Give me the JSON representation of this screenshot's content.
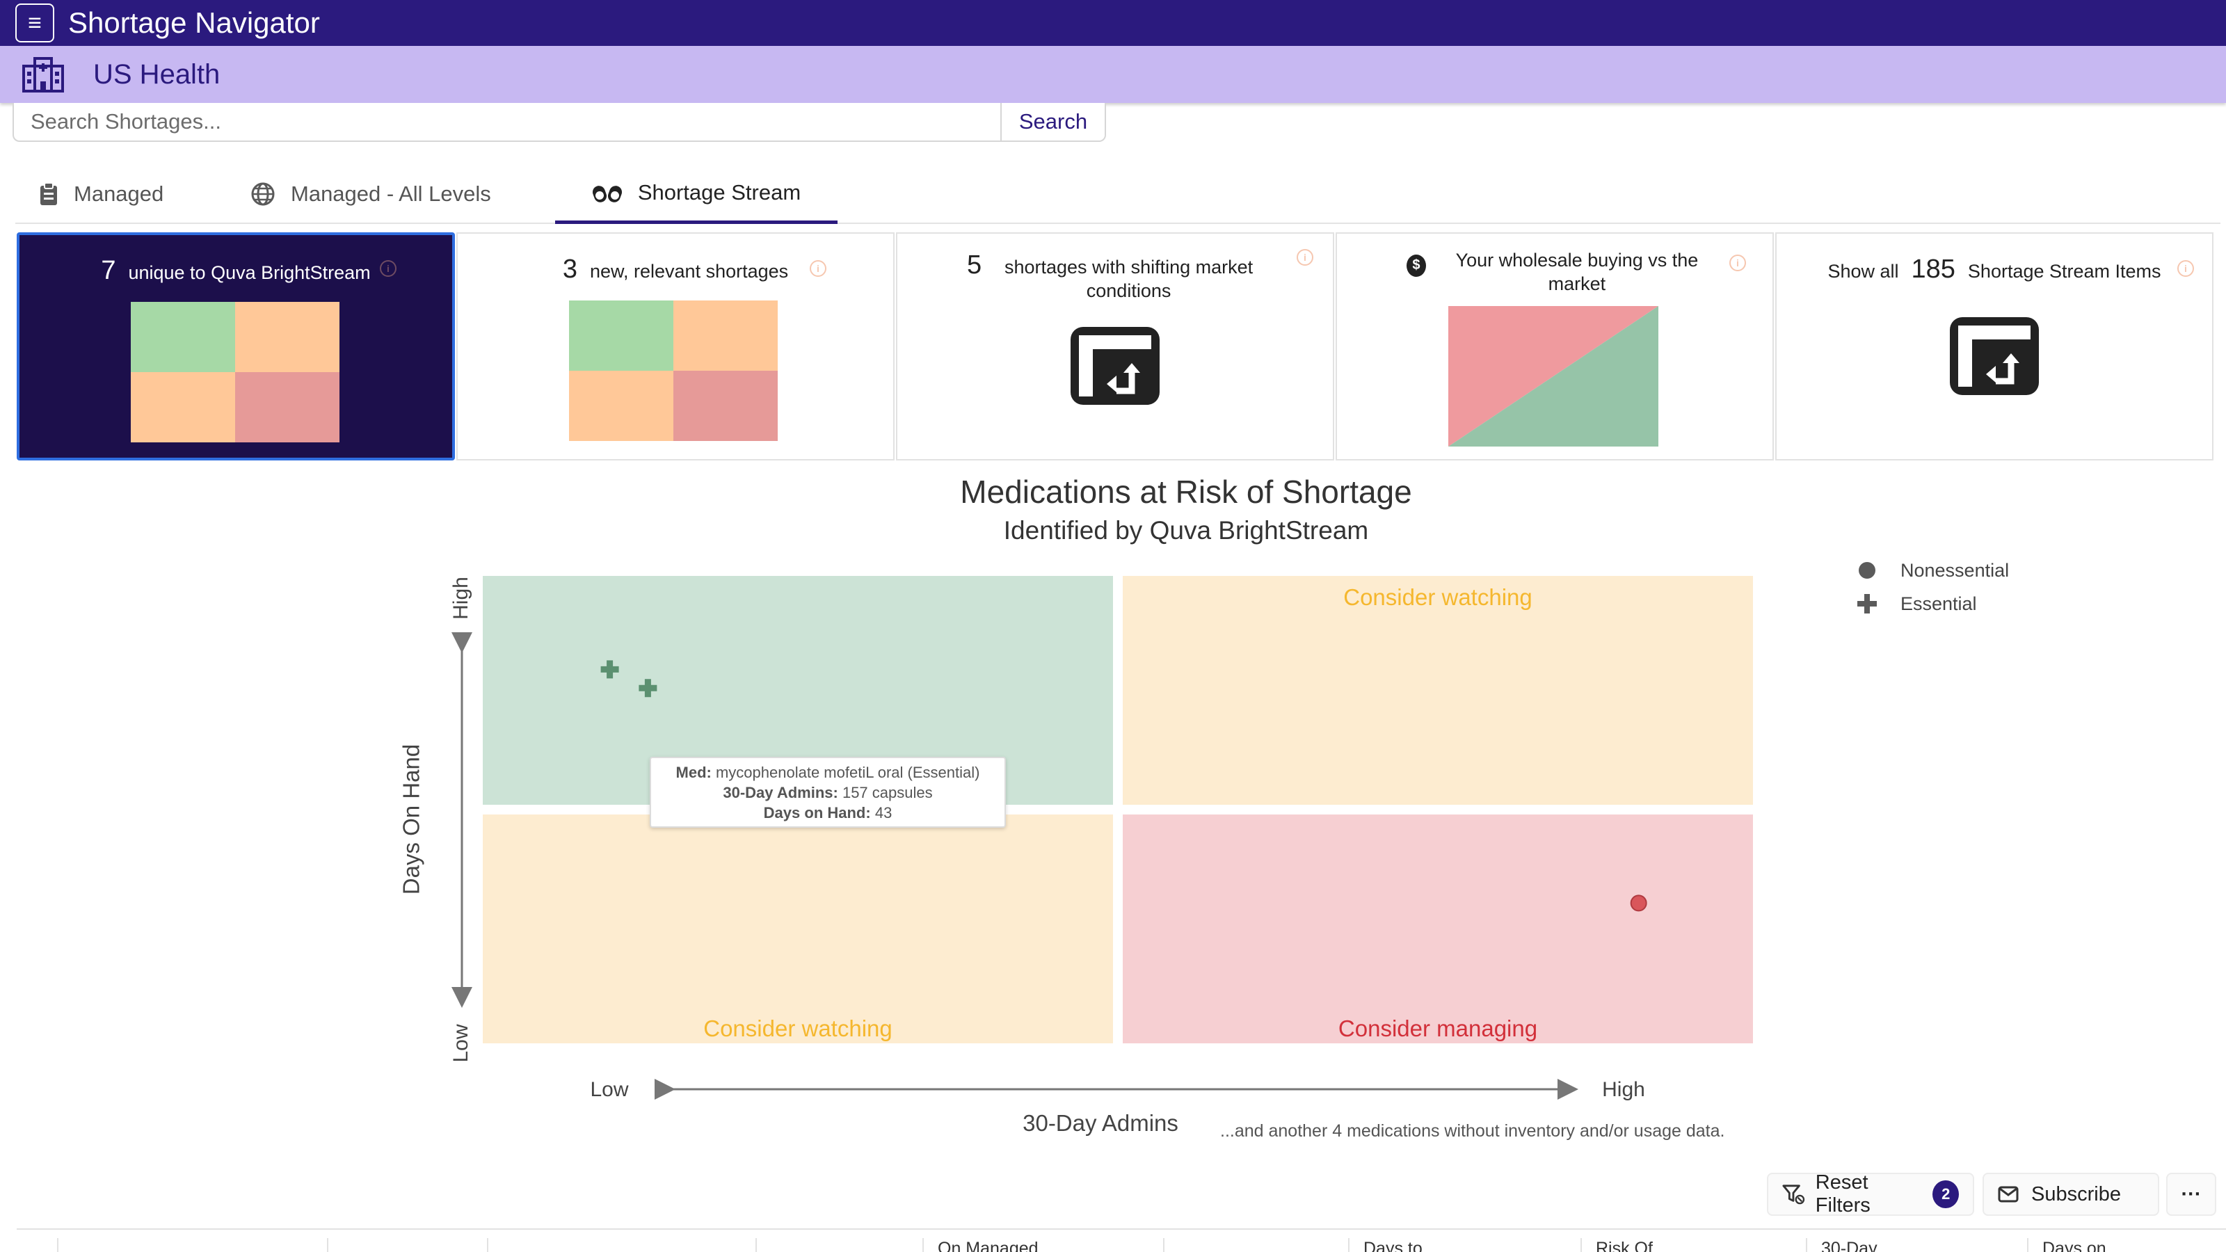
{
  "app": {
    "title": "Shortage Navigator",
    "menu_icon": "hamburger-icon"
  },
  "org": {
    "name": "US Health",
    "icon": "hospital-icon"
  },
  "search": {
    "placeholder": "Search Shortages...",
    "value": "",
    "button": "Search"
  },
  "tabs": [
    {
      "label": "Managed",
      "icon": "clipboard-icon",
      "active": false
    },
    {
      "label": "Managed - All Levels",
      "icon": "globe-icon",
      "active": false
    },
    {
      "label": "Shortage Stream",
      "icon": "pills-icon",
      "active": true
    }
  ],
  "cards": [
    {
      "count": "7",
      "label": "unique to Quva BrightStream",
      "selected": true
    },
    {
      "count": "3",
      "label": "new, relevant shortages",
      "selected": false
    },
    {
      "count": "5",
      "label": "shortages with shifting market conditions",
      "selected": false
    },
    {
      "label": "Your wholesale buying vs the market",
      "icon": "dollar-icon",
      "selected": false
    },
    {
      "prefix": "Show all",
      "count": "185",
      "label": "Shortage Stream Items",
      "selected": false
    }
  ],
  "chart_data": {
    "type": "scatter",
    "title": "Medications at Risk of Shortage",
    "subtitle": "Identified by Quva BrightStream",
    "xlabel": "30-Day Admins",
    "ylabel": "Days On Hand",
    "x_ticks": [
      "Low",
      "High"
    ],
    "y_ticks": [
      "Low",
      "High"
    ],
    "xlim": [
      0,
      1
    ],
    "ylim": [
      0,
      1
    ],
    "quadrants": [
      {
        "position": "top-left",
        "label": "",
        "color": "#cce3d6"
      },
      {
        "position": "top-right",
        "label": "Consider watching",
        "color": "#fdecd0"
      },
      {
        "position": "bottom-left",
        "label": "Consider watching",
        "color": "#fdecd0"
      },
      {
        "position": "bottom-right",
        "label": "Consider managing",
        "color": "#f6cfd2"
      }
    ],
    "legend": [
      {
        "name": "Nonessential",
        "marker": "circle"
      },
      {
        "name": "Essential",
        "marker": "cross"
      }
    ],
    "legend_position": "top-right",
    "points": [
      {
        "x": 0.1,
        "y": 0.8,
        "marker": "cross",
        "color": "#5b9070"
      },
      {
        "x": 0.13,
        "y": 0.76,
        "marker": "cross",
        "color": "#5b9070"
      },
      {
        "x": 0.91,
        "y": 0.3,
        "marker": "circle",
        "color": "#d9565b"
      }
    ],
    "tooltip": {
      "med_label": "Med:",
      "med_value": "mycophenolate mofetiL oral (Essential)",
      "admins_label": "30-Day Admins:",
      "admins_value": "157 capsules",
      "doh_label": "Days on Hand:",
      "doh_value": "43"
    },
    "note": "...and another 4 medications without inventory and/or usage data."
  },
  "toolbar": {
    "reset_label": "Reset Filters",
    "reset_count": "2",
    "subscribe_label": "Subscribe",
    "more_label": "···"
  },
  "table_headers": [
    "",
    "",
    "",
    "",
    "On Managed",
    "",
    "Days to",
    "Risk Of",
    "30-Day",
    "Days on"
  ],
  "colors": {
    "brand": "#2b1a7e",
    "subbar": "#c7b8f2",
    "accent_orange": "#f5b72e",
    "accent_red": "#d2303a"
  }
}
